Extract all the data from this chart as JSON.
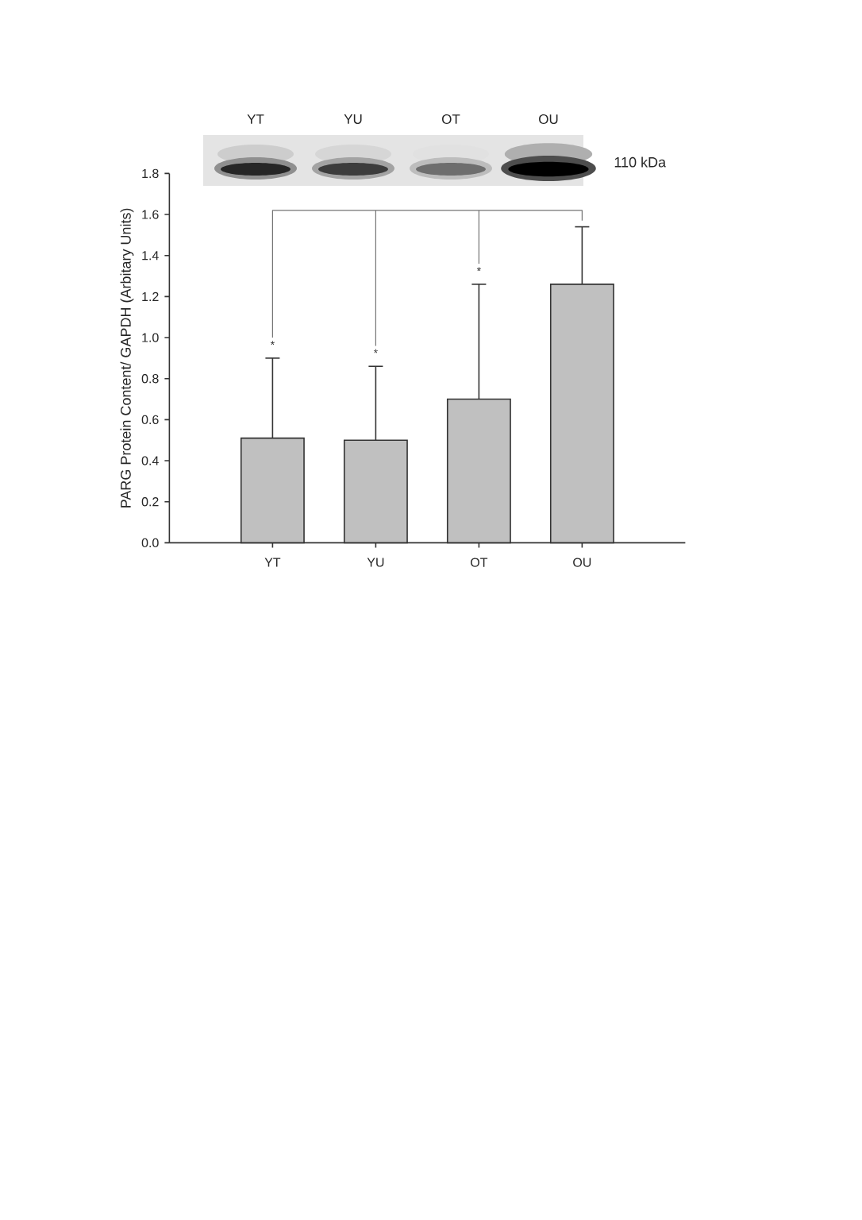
{
  "chart_data": {
    "type": "bar",
    "categories": [
      "YT",
      "YU",
      "OT",
      "OU"
    ],
    "values": [
      0.51,
      0.5,
      0.7,
      1.26
    ],
    "errors": [
      [
        0.51,
        0.9
      ],
      [
        0.5,
        0.86
      ],
      [
        0.7,
        1.26
      ],
      [
        1.26,
        1.54
      ]
    ],
    "color": "#c0c0c0",
    "ylabel": "PARG Protein Content/ GAPDH (Arbitary Units)",
    "ylim": [
      0,
      1.8
    ],
    "yticks": [
      {
        "value": 0,
        "label": "0.0"
      },
      0.2,
      0.4,
      0.6,
      0.8,
      {
        "value": 1,
        "label": "1.0"
      },
      1.2,
      1.4,
      1.6,
      1.8
    ],
    "annotations": [
      "YT",
      "YU",
      "OT",
      "OU",
      "110 kDa",
      "*",
      "*",
      "*"
    ]
  }
}
